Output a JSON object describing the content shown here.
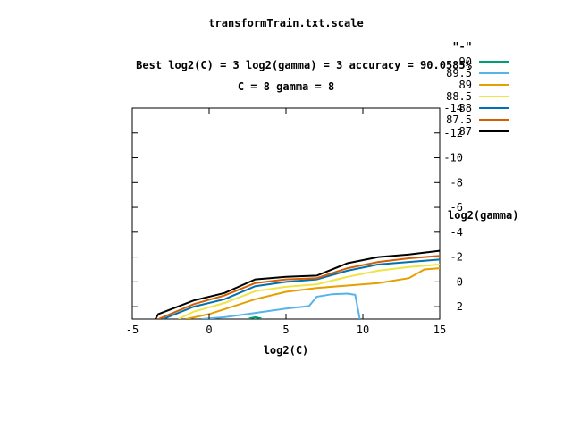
{
  "chart_data": {
    "type": "line",
    "title": "transformTrain.txt.scale",
    "subtitle_lines": [
      "Best log2(C) = 3  log2(gamma) = 3  accuracy = 90.0585%",
      "C = 8  gamma = 8"
    ],
    "xlabel": "log2(C)",
    "ylabel": "log2(gamma)",
    "xlim": [
      -5,
      15
    ],
    "ylim": [
      3,
      -14
    ],
    "x_ticks": [
      -5,
      0,
      5,
      10,
      15
    ],
    "x_tick_labels": [
      "-5",
      "0",
      "5",
      "10",
      "15"
    ],
    "y_ticks": [
      -14,
      -12,
      -10,
      -8,
      -6,
      -4,
      -2,
      0,
      2
    ],
    "y_tick_labels": [
      "-14",
      "-12",
      "-10",
      "-8",
      "-6",
      "-4",
      "-2",
      "0",
      "2"
    ],
    "grid": false,
    "legend_position": "top-right",
    "legend_title": "\"-\"",
    "series": [
      {
        "name": "90",
        "color": "#009e73",
        "points": [
          [
            2.6,
            2.95
          ],
          [
            3,
            2.85
          ],
          [
            3.4,
            2.95
          ]
        ]
      },
      {
        "name": "89.5",
        "color": "#56b4e9",
        "points": [
          [
            -0.5,
            3
          ],
          [
            1,
            2.85
          ],
          [
            3,
            2.5
          ],
          [
            5,
            2.15
          ],
          [
            6.5,
            1.95
          ],
          [
            7,
            1.2
          ],
          [
            8,
            1.0
          ],
          [
            9,
            0.95
          ],
          [
            9.5,
            1.05
          ],
          [
            9.8,
            3
          ]
        ]
      },
      {
        "name": "89",
        "color": "#e69f00",
        "points": [
          [
            -1.5,
            3
          ],
          [
            0,
            2.6
          ],
          [
            1,
            2.2
          ],
          [
            3,
            1.4
          ],
          [
            5,
            0.8
          ],
          [
            7,
            0.5
          ],
          [
            9,
            0.3
          ],
          [
            11,
            0.1
          ],
          [
            13,
            -0.3
          ],
          [
            14,
            -1.0
          ],
          [
            15,
            -1.1
          ]
        ]
      },
      {
        "name": "88.5",
        "color": "#f0e442",
        "points": [
          [
            -2,
            3
          ],
          [
            -1,
            2.4
          ],
          [
            1,
            1.7
          ],
          [
            3,
            0.75
          ],
          [
            5,
            0.4
          ],
          [
            7,
            0.2
          ],
          [
            9,
            -0.4
          ],
          [
            11,
            -0.9
          ],
          [
            13,
            -1.2
          ],
          [
            15,
            -1.4
          ]
        ]
      },
      {
        "name": "88",
        "color": "#0072b2",
        "points": [
          [
            -3,
            3
          ],
          [
            -1,
            2.0
          ],
          [
            1,
            1.4
          ],
          [
            3,
            0.35
          ],
          [
            5,
            0.0
          ],
          [
            7,
            -0.2
          ],
          [
            9,
            -0.9
          ],
          [
            11,
            -1.4
          ],
          [
            13,
            -1.6
          ],
          [
            15,
            -1.8
          ]
        ]
      },
      {
        "name": "87.5",
        "color": "#d55e00",
        "points": [
          [
            -3.3,
            3
          ],
          [
            -1,
            1.8
          ],
          [
            1,
            1.1
          ],
          [
            3,
            0.1
          ],
          [
            5,
            -0.2
          ],
          [
            7,
            -0.3
          ],
          [
            9,
            -1.1
          ],
          [
            11,
            -1.6
          ],
          [
            13,
            -1.9
          ],
          [
            15,
            -2.1
          ]
        ]
      },
      {
        "name": "87",
        "color": "#000000",
        "points": [
          [
            -3.5,
            3
          ],
          [
            -3.3,
            2.6
          ],
          [
            -1,
            1.5
          ],
          [
            1,
            0.9
          ],
          [
            3,
            -0.2
          ],
          [
            5,
            -0.4
          ],
          [
            7,
            -0.5
          ],
          [
            9,
            -1.5
          ],
          [
            11,
            -2.0
          ],
          [
            13,
            -2.2
          ],
          [
            15,
            -2.5
          ]
        ]
      }
    ]
  }
}
